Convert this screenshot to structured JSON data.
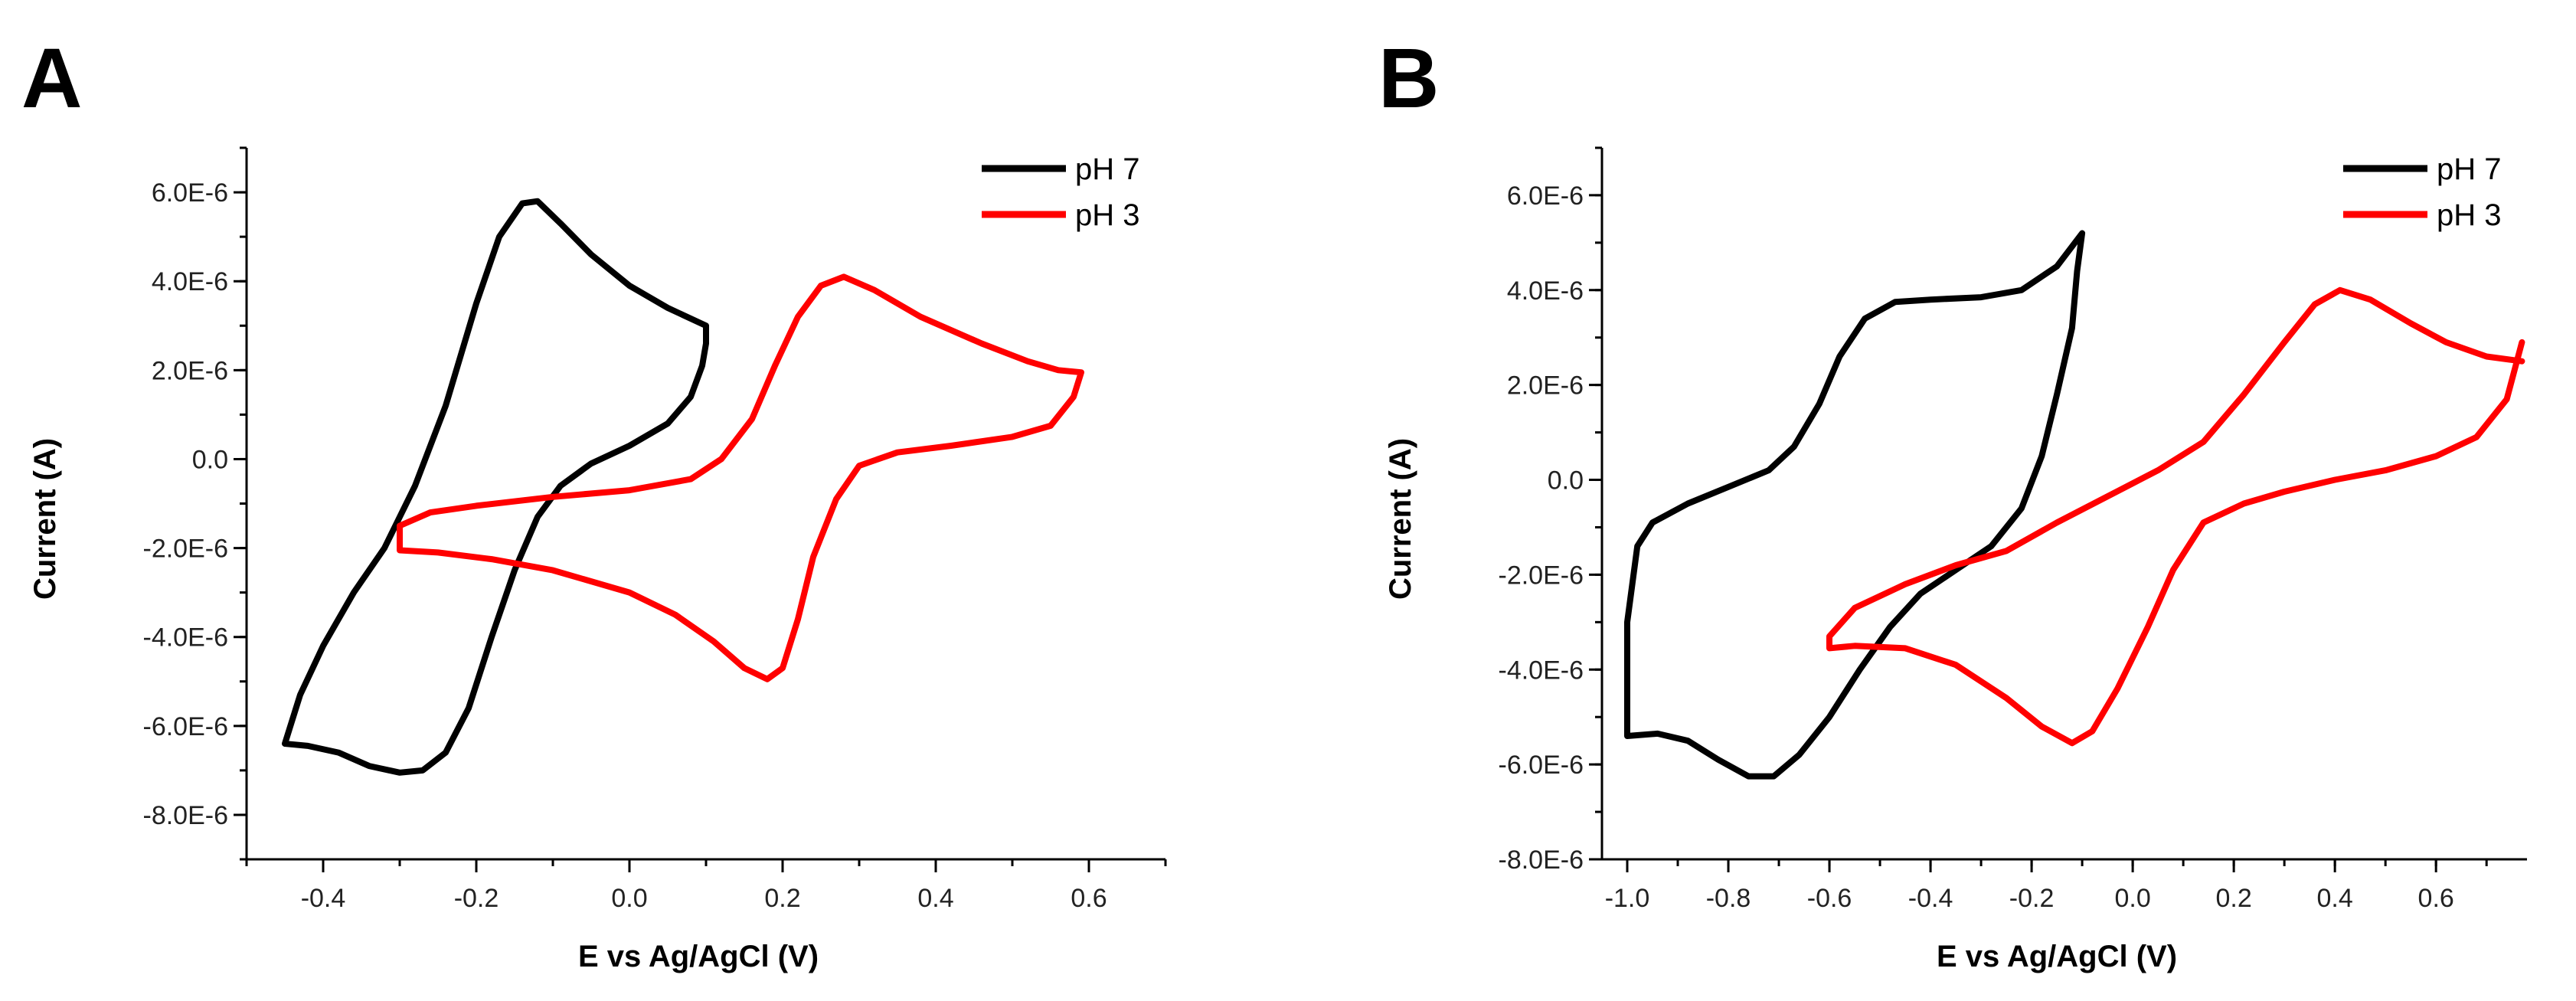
{
  "chart_data": [
    {
      "panel": "A",
      "type": "line",
      "xlabel": "E vs Ag/AgCl (V)",
      "ylabel": "Current (A)",
      "xlim": [
        -0.5,
        0.7
      ],
      "ylim": [
        -9e-06,
        7e-06
      ],
      "xticks": [
        -0.4,
        -0.2,
        0.0,
        0.2,
        0.4,
        0.6
      ],
      "xtick_labels": [
        "-0.4",
        "-0.2",
        "0.0",
        "0.2",
        "0.4",
        "0.6"
      ],
      "yticks": [
        6e-06,
        4e-06,
        2e-06,
        0,
        -2e-06,
        -4e-06,
        -6e-06,
        -8e-06
      ],
      "ytick_labels": [
        "6.0E-6",
        "4.0E-6",
        "2.0E-6",
        "0.0",
        "-2.0E-6",
        "-4.0E-6",
        "-6.0E-6",
        "-8.0E-6"
      ],
      "legend_position": "top-right",
      "series": [
        {
          "name": "pH 7",
          "color": "#000000",
          "points": [
            [
              0.1,
              3e-06
            ],
            [
              0.05,
              3.4e-06
            ],
            [
              0.0,
              3.9e-06
            ],
            [
              -0.05,
              4.6e-06
            ],
            [
              -0.09,
              5.3e-06
            ],
            [
              -0.12,
              5.8e-06
            ],
            [
              -0.14,
              5.75e-06
            ],
            [
              -0.17,
              5e-06
            ],
            [
              -0.2,
              3.5e-06
            ],
            [
              -0.24,
              1.2e-06
            ],
            [
              -0.28,
              -6e-07
            ],
            [
              -0.32,
              -2e-06
            ],
            [
              -0.36,
              -3e-06
            ],
            [
              -0.4,
              -4.2e-06
            ],
            [
              -0.43,
              -5.3e-06
            ],
            [
              -0.45,
              -6.4e-06
            ],
            [
              -0.42,
              -6.45e-06
            ],
            [
              -0.38,
              -6.6e-06
            ],
            [
              -0.34,
              -6.9e-06
            ],
            [
              -0.3,
              -7.05e-06
            ],
            [
              -0.27,
              -7e-06
            ],
            [
              -0.24,
              -6.6e-06
            ],
            [
              -0.21,
              -5.6e-06
            ],
            [
              -0.18,
              -4e-06
            ],
            [
              -0.15,
              -2.5e-06
            ],
            [
              -0.12,
              -1.3e-06
            ],
            [
              -0.09,
              -6e-07
            ],
            [
              -0.05,
              -1e-07
            ],
            [
              0.0,
              3e-07
            ],
            [
              0.05,
              8e-07
            ],
            [
              0.08,
              1.4e-06
            ],
            [
              0.095,
              2.1e-06
            ],
            [
              0.1,
              2.6e-06
            ],
            [
              0.1,
              3e-06
            ]
          ]
        },
        {
          "name": "pH 3",
          "color": "#ff0000",
          "points": [
            [
              0.59,
              1.95e-06
            ],
            [
              0.56,
              2e-06
            ],
            [
              0.52,
              2.2e-06
            ],
            [
              0.46,
              2.6e-06
            ],
            [
              0.38,
              3.2e-06
            ],
            [
              0.32,
              3.8e-06
            ],
            [
              0.28,
              4.1e-06
            ],
            [
              0.25,
              3.9e-06
            ],
            [
              0.22,
              3.2e-06
            ],
            [
              0.19,
              2.1e-06
            ],
            [
              0.16,
              9e-07
            ],
            [
              0.12,
              0.0
            ],
            [
              0.08,
              -4.5e-07
            ],
            [
              0.0,
              -7e-07
            ],
            [
              -0.1,
              -8.5e-07
            ],
            [
              -0.2,
              -1.05e-06
            ],
            [
              -0.26,
              -1.2e-06
            ],
            [
              -0.3,
              -1.5e-06
            ],
            [
              -0.3,
              -2.05e-06
            ],
            [
              -0.25,
              -2.1e-06
            ],
            [
              -0.18,
              -2.25e-06
            ],
            [
              -0.1,
              -2.5e-06
            ],
            [
              0.0,
              -3e-06
            ],
            [
              0.06,
              -3.5e-06
            ],
            [
              0.11,
              -4.1e-06
            ],
            [
              0.15,
              -4.7e-06
            ],
            [
              0.18,
              -4.95e-06
            ],
            [
              0.2,
              -4.7e-06
            ],
            [
              0.22,
              -3.6e-06
            ],
            [
              0.24,
              -2.2e-06
            ],
            [
              0.27,
              -9e-07
            ],
            [
              0.3,
              -1.5e-07
            ],
            [
              0.35,
              1.5e-07
            ],
            [
              0.42,
              3e-07
            ],
            [
              0.5,
              5e-07
            ],
            [
              0.55,
              7.5e-07
            ],
            [
              0.58,
              1.4e-06
            ],
            [
              0.59,
              1.95e-06
            ]
          ]
        }
      ]
    },
    {
      "panel": "B",
      "type": "line",
      "xlabel": "E vs Ag/AgCl (V)",
      "ylabel": "Current (A)",
      "xlim": [
        -1.05,
        0.78
      ],
      "ylim": [
        -8e-06,
        7e-06
      ],
      "xticks": [
        -1.0,
        -0.8,
        -0.6,
        -0.4,
        -0.2,
        0.0,
        0.2,
        0.4,
        0.6
      ],
      "xtick_labels": [
        "-1.0",
        "-0.8",
        "-0.6",
        "-0.4",
        "-0.2",
        "0.0",
        "0.2",
        "0.4",
        "0.6"
      ],
      "yticks": [
        6e-06,
        4e-06,
        2e-06,
        0,
        -2e-06,
        -4e-06,
        -6e-06,
        -8e-06
      ],
      "ytick_labels": [
        "6.0E-6",
        "4.0E-6",
        "2.0E-6",
        "0.0",
        "-2.0E-6",
        "-4.0E-6",
        "-6.0E-6",
        "-8.0E-6"
      ],
      "legend_position": "top-right",
      "series": [
        {
          "name": "pH 7",
          "color": "#000000",
          "points": [
            [
              -0.1,
              5.2e-06
            ],
            [
              -0.15,
              4.5e-06
            ],
            [
              -0.22,
              4e-06
            ],
            [
              -0.3,
              3.85e-06
            ],
            [
              -0.4,
              3.8e-06
            ],
            [
              -0.47,
              3.75e-06
            ],
            [
              -0.53,
              3.4e-06
            ],
            [
              -0.58,
              2.6e-06
            ],
            [
              -0.62,
              1.6e-06
            ],
            [
              -0.67,
              7e-07
            ],
            [
              -0.72,
              2e-07
            ],
            [
              -0.8,
              -1.5e-07
            ],
            [
              -0.88,
              -5e-07
            ],
            [
              -0.95,
              -9e-07
            ],
            [
              -0.98,
              -1.4e-06
            ],
            [
              -0.99,
              -2.2e-06
            ],
            [
              -1.0,
              -3e-06
            ],
            [
              -1.0,
              -5.4e-06
            ],
            [
              -0.94,
              -5.35e-06
            ],
            [
              -0.88,
              -5.5e-06
            ],
            [
              -0.82,
              -5.9e-06
            ],
            [
              -0.76,
              -6.25e-06
            ],
            [
              -0.71,
              -6.25e-06
            ],
            [
              -0.66,
              -5.8e-06
            ],
            [
              -0.6,
              -5e-06
            ],
            [
              -0.54,
              -4e-06
            ],
            [
              -0.48,
              -3.1e-06
            ],
            [
              -0.42,
              -2.4e-06
            ],
            [
              -0.35,
              -1.9e-06
            ],
            [
              -0.28,
              -1.4e-06
            ],
            [
              -0.22,
              -6e-07
            ],
            [
              -0.18,
              5e-07
            ],
            [
              -0.15,
              1.8e-06
            ],
            [
              -0.12,
              3.2e-06
            ],
            [
              -0.11,
              4.4e-06
            ],
            [
              -0.1,
              5.2e-06
            ]
          ]
        },
        {
          "name": "pH 3",
          "color": "#ff0000",
          "points": [
            [
              0.77,
              2.5e-06
            ],
            [
              0.7,
              2.6e-06
            ],
            [
              0.62,
              2.9e-06
            ],
            [
              0.55,
              3.3e-06
            ],
            [
              0.47,
              3.8e-06
            ],
            [
              0.41,
              4e-06
            ],
            [
              0.36,
              3.7e-06
            ],
            [
              0.3,
              2.9e-06
            ],
            [
              0.22,
              1.8e-06
            ],
            [
              0.14,
              8e-07
            ],
            [
              0.05,
              2e-07
            ],
            [
              -0.05,
              -3.5e-07
            ],
            [
              -0.15,
              -9e-07
            ],
            [
              -0.25,
              -1.5e-06
            ],
            [
              -0.35,
              -1.8e-06
            ],
            [
              -0.45,
              -2.2e-06
            ],
            [
              -0.55,
              -2.7e-06
            ],
            [
              -0.6,
              -3.3e-06
            ],
            [
              -0.6,
              -3.55e-06
            ],
            [
              -0.55,
              -3.5e-06
            ],
            [
              -0.45,
              -3.55e-06
            ],
            [
              -0.35,
              -3.9e-06
            ],
            [
              -0.25,
              -4.6e-06
            ],
            [
              -0.18,
              -5.2e-06
            ],
            [
              -0.12,
              -5.55e-06
            ],
            [
              -0.08,
              -5.3e-06
            ],
            [
              -0.03,
              -4.4e-06
            ],
            [
              0.03,
              -3.1e-06
            ],
            [
              0.08,
              -1.9e-06
            ],
            [
              0.14,
              -9e-07
            ],
            [
              0.22,
              -5e-07
            ],
            [
              0.3,
              -2.5e-07
            ],
            [
              0.4,
              0.0
            ],
            [
              0.5,
              2e-07
            ],
            [
              0.6,
              5e-07
            ],
            [
              0.68,
              9e-07
            ],
            [
              0.74,
              1.7e-06
            ],
            [
              0.77,
              2.9e-06
            ]
          ]
        }
      ]
    }
  ]
}
